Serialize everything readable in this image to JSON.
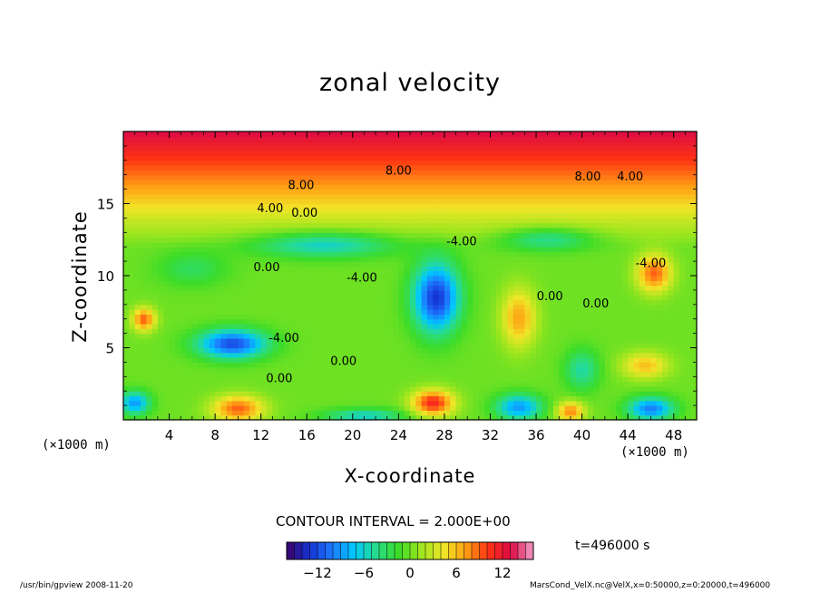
{
  "chart_data": {
    "type": "heatmap",
    "title": "zonal velocity",
    "xlabel": "X-coordinate",
    "ylabel": "Z-coordinate",
    "x_unit_left": "(×1000 m)",
    "x_unit_right": "(×1000 m)",
    "xlim": [
      0,
      50
    ],
    "ylim": [
      0,
      20
    ],
    "xticks": [
      4,
      8,
      12,
      16,
      20,
      24,
      28,
      32,
      36,
      40,
      44,
      48
    ],
    "xtick_labels": [
      "4",
      "8",
      "12",
      "16",
      "20",
      "24",
      "28",
      "32",
      "36",
      "40",
      "44",
      "48"
    ],
    "yticks": [
      5,
      10,
      15
    ],
    "ytick_labels": [
      "5",
      "10",
      "15"
    ],
    "contour_interval_label": "CONTOUR INTERVAL = 2.000E+00",
    "time_label": "t=496000 s",
    "contour_labels": [
      {
        "text": "8.00",
        "x": 15.5,
        "y": 16.0
      },
      {
        "text": "8.00",
        "x": 24.0,
        "y": 17.0
      },
      {
        "text": "8.00",
        "x": 40.5,
        "y": 16.6
      },
      {
        "text": "4.00",
        "x": 44.2,
        "y": 16.6
      },
      {
        "text": "4.00",
        "x": 12.8,
        "y": 14.4
      },
      {
        "text": "0.00",
        "x": 15.8,
        "y": 14.1
      },
      {
        "text": "-4.00",
        "x": 29.5,
        "y": 12.1
      },
      {
        "text": "0.00",
        "x": 12.5,
        "y": 10.3
      },
      {
        "text": "-4.00",
        "x": 20.8,
        "y": 9.6
      },
      {
        "text": "-4.00",
        "x": 46.0,
        "y": 10.6
      },
      {
        "text": "0.00",
        "x": 37.2,
        "y": 8.3
      },
      {
        "text": "0.00",
        "x": 41.2,
        "y": 7.8
      },
      {
        "text": "-4.00",
        "x": 14.0,
        "y": 5.4
      },
      {
        "text": "0.00",
        "x": 19.2,
        "y": 3.8
      },
      {
        "text": "0.00",
        "x": 13.6,
        "y": 2.6
      }
    ],
    "features": [
      {
        "x": 27.3,
        "z": 8.5,
        "value": -13,
        "sx": 2.0,
        "sz": 2.4
      },
      {
        "x": 9.5,
        "z": 5.3,
        "value": -12,
        "sx": 3.0,
        "sz": 1.0
      },
      {
        "x": 34.5,
        "z": 7.1,
        "value": 7,
        "sx": 1.5,
        "sz": 2.0
      },
      {
        "x": 46.3,
        "z": 10.2,
        "value": 9,
        "sx": 1.5,
        "sz": 1.3
      },
      {
        "x": 1.8,
        "z": 7.0,
        "value": 9,
        "sx": 1.0,
        "sz": 0.8
      },
      {
        "x": 17.5,
        "z": 12.2,
        "value": -6,
        "sx": 6.0,
        "sz": 0.9
      },
      {
        "x": 40.0,
        "z": 3.5,
        "value": -5,
        "sx": 1.5,
        "sz": 1.4
      },
      {
        "x": 46.0,
        "z": 0.8,
        "value": -10,
        "sx": 2.0,
        "sz": 0.8
      },
      {
        "x": 1.0,
        "z": 1.2,
        "value": -9,
        "sx": 1.3,
        "sz": 0.8
      },
      {
        "x": 10.0,
        "z": 0.8,
        "value": 9,
        "sx": 2.2,
        "sz": 0.9
      },
      {
        "x": 27.0,
        "z": 1.2,
        "value": 11,
        "sx": 1.8,
        "sz": 0.9
      },
      {
        "x": 39.0,
        "z": 0.6,
        "value": 8,
        "sx": 1.2,
        "sz": 0.7
      },
      {
        "x": 34.5,
        "z": 0.9,
        "value": -9,
        "sx": 2.0,
        "sz": 0.9
      },
      {
        "x": 21.0,
        "z": 0.3,
        "value": -6,
        "sx": 3.5,
        "sz": 0.5
      },
      {
        "x": 45.5,
        "z": 3.8,
        "value": 6,
        "sx": 2.0,
        "sz": 0.9
      },
      {
        "x": 37.0,
        "z": 12.6,
        "value": -5,
        "sx": 4.0,
        "sz": 0.8
      },
      {
        "x": 6.0,
        "z": 10.5,
        "value": -3,
        "sx": 3.0,
        "sz": 1.2
      }
    ],
    "background": [
      {
        "z": 0,
        "value": 0
      },
      {
        "z": 12,
        "value": 0
      },
      {
        "z": 14,
        "value": 3
      },
      {
        "z": 16,
        "value": 7
      },
      {
        "z": 18,
        "value": 10
      },
      {
        "z": 20,
        "value": 13
      }
    ],
    "colorbar": {
      "range": [
        -16,
        16
      ],
      "tick_values": [
        -12,
        -6,
        0,
        6,
        12
      ],
      "tick_labels": [
        "−12",
        "−6",
        "0",
        "6",
        "12"
      ]
    },
    "colors": {
      "stops": [
        "#3c0064",
        "#1432d2",
        "#1e78ff",
        "#00c8ff",
        "#28dc8c",
        "#3cdc28",
        "#a0e61e",
        "#f0e628",
        "#ffa014",
        "#ff3214",
        "#dc0a46",
        "#f0a0c8"
      ]
    }
  },
  "footer": {
    "left": "/usr/bin/gpview  2008-11-20",
    "right": "MarsCond_VelX.nc@VelX,x=0:50000,z=0:20000,t=496000"
  }
}
